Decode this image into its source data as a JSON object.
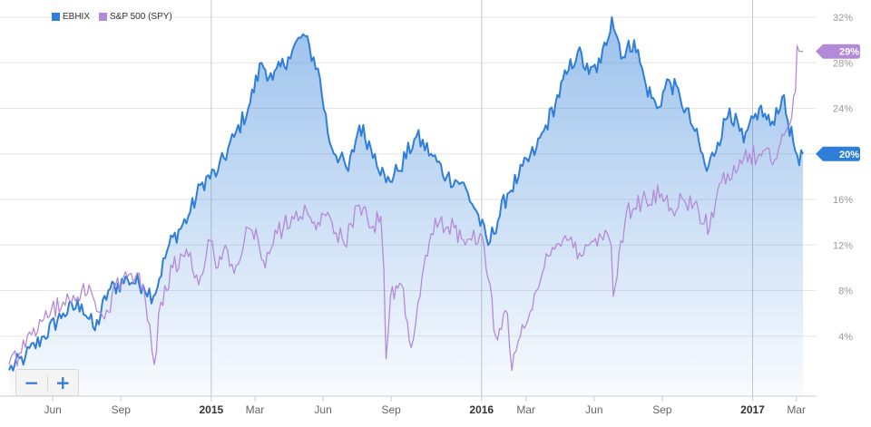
{
  "colors": {
    "ebhix": "#2f7ed8",
    "spy": "#b48ad8",
    "grid": "#e6e6e6",
    "axis_text": "#606060"
  },
  "chart_data": {
    "type": "line",
    "ylim": [
      0,
      32
    ],
    "y_ticks": [
      {
        "label": "4%",
        "value": 4
      },
      {
        "label": "8%",
        "value": 8
      },
      {
        "label": "12%",
        "value": 12
      },
      {
        "label": "16%",
        "value": 16
      },
      {
        "label": "20%",
        "value": 20
      },
      {
        "label": "24%",
        "value": 24
      },
      {
        "label": "28%",
        "value": 28
      },
      {
        "label": "32%",
        "value": 32
      }
    ],
    "x_range": [
      "2014-04-03",
      "2017-03-10"
    ],
    "x_ticks": [
      {
        "label": "Jun",
        "date": "2014-06-01",
        "bold": false
      },
      {
        "label": "Sep",
        "date": "2014-09-01",
        "bold": false
      },
      {
        "label": "2015",
        "date": "2015-01-01",
        "bold": true
      },
      {
        "label": "Mar",
        "date": "2015-03-01",
        "bold": false
      },
      {
        "label": "Jun",
        "date": "2015-06-01",
        "bold": false
      },
      {
        "label": "Sep",
        "date": "2015-09-01",
        "bold": false
      },
      {
        "label": "2016",
        "date": "2016-01-01",
        "bold": true
      },
      {
        "label": "Mar",
        "date": "2016-03-01",
        "bold": false
      },
      {
        "label": "Jun",
        "date": "2016-06-01",
        "bold": false
      },
      {
        "label": "Sep",
        "date": "2016-09-01",
        "bold": false
      },
      {
        "label": "2017",
        "date": "2017-01-01",
        "bold": true
      },
      {
        "label": "Mar",
        "date": "2017-03-01",
        "bold": false
      }
    ],
    "series": [
      {
        "name": "EBHIX",
        "color": "#2f7ed8",
        "filled": true,
        "end_label": "20%",
        "points": [
          [
            "2014-04-03",
            1.0
          ],
          [
            "2014-04-25",
            2.2
          ],
          [
            "2014-05-20",
            4.0
          ],
          [
            "2014-06-15",
            6.0
          ],
          [
            "2014-07-10",
            6.8
          ],
          [
            "2014-07-28",
            4.5
          ],
          [
            "2014-08-15",
            8.0
          ],
          [
            "2014-09-10",
            9.0
          ],
          [
            "2014-10-01",
            8.5
          ],
          [
            "2014-10-15",
            7.5
          ],
          [
            "2014-11-05",
            12.0
          ],
          [
            "2014-12-01",
            14.5
          ],
          [
            "2014-12-20",
            17.5
          ],
          [
            "2015-01-10",
            18.5
          ],
          [
            "2015-02-01",
            21.5
          ],
          [
            "2015-02-20",
            24.0
          ],
          [
            "2015-03-10",
            28.0
          ],
          [
            "2015-03-25",
            26.5
          ],
          [
            "2015-04-15",
            28.5
          ],
          [
            "2015-05-05",
            30.5
          ],
          [
            "2015-05-25",
            27.5
          ],
          [
            "2015-06-10",
            21.0
          ],
          [
            "2015-07-05",
            18.5
          ],
          [
            "2015-07-20",
            22.5
          ],
          [
            "2015-08-10",
            20.0
          ],
          [
            "2015-08-25",
            17.5
          ],
          [
            "2015-09-10",
            18.5
          ],
          [
            "2015-10-05",
            21.5
          ],
          [
            "2015-10-25",
            20.0
          ],
          [
            "2015-11-15",
            18.0
          ],
          [
            "2015-12-05",
            17.5
          ],
          [
            "2015-12-25",
            15.0
          ],
          [
            "2016-01-10",
            12.0
          ],
          [
            "2016-02-05",
            16.5
          ],
          [
            "2016-02-20",
            18.0
          ],
          [
            "2016-03-15",
            20.5
          ],
          [
            "2016-03-25",
            22.0
          ],
          [
            "2016-04-10",
            24.5
          ],
          [
            "2016-04-25",
            27.0
          ],
          [
            "2016-05-10",
            29.0
          ],
          [
            "2016-05-25",
            27.0
          ],
          [
            "2016-06-10",
            28.0
          ],
          [
            "2016-06-25",
            32.0
          ],
          [
            "2016-07-10",
            28.5
          ],
          [
            "2016-07-25",
            30.0
          ],
          [
            "2016-08-10",
            26.0
          ],
          [
            "2016-08-25",
            24.0
          ],
          [
            "2016-09-10",
            26.5
          ],
          [
            "2016-09-25",
            25.0
          ],
          [
            "2016-10-15",
            22.0
          ],
          [
            "2016-10-31",
            18.5
          ],
          [
            "2016-11-15",
            21.0
          ],
          [
            "2016-12-01",
            24.0
          ],
          [
            "2016-12-20",
            21.0
          ],
          [
            "2017-01-10",
            24.0
          ],
          [
            "2017-01-25",
            22.5
          ],
          [
            "2017-02-10",
            25.0
          ],
          [
            "2017-02-25",
            21.0
          ],
          [
            "2017-03-05",
            19.0
          ],
          [
            "2017-03-10",
            20.0
          ]
        ]
      },
      {
        "name": "S&P 500 (SPY)",
        "color": "#b48ad8",
        "filled": false,
        "end_label": "29%",
        "points": [
          [
            "2014-04-03",
            1.5
          ],
          [
            "2014-04-25",
            3.0
          ],
          [
            "2014-05-20",
            5.5
          ],
          [
            "2014-06-15",
            7.0
          ],
          [
            "2014-07-10",
            8.0
          ],
          [
            "2014-07-25",
            7.5
          ],
          [
            "2014-08-10",
            5.5
          ],
          [
            "2014-08-25",
            8.5
          ],
          [
            "2014-09-15",
            9.5
          ],
          [
            "2014-10-01",
            8.5
          ],
          [
            "2014-10-10",
            5.0
          ],
          [
            "2014-10-16",
            1.5
          ],
          [
            "2014-10-25",
            7.0
          ],
          [
            "2014-11-10",
            10.0
          ],
          [
            "2014-12-01",
            11.0
          ],
          [
            "2014-12-15",
            8.5
          ],
          [
            "2014-12-28",
            12.5
          ],
          [
            "2015-01-10",
            10.0
          ],
          [
            "2015-01-20",
            12.0
          ],
          [
            "2015-02-01",
            9.5
          ],
          [
            "2015-02-20",
            13.5
          ],
          [
            "2015-03-05",
            12.5
          ],
          [
            "2015-03-15",
            10.0
          ],
          [
            "2015-03-31",
            13.0
          ],
          [
            "2015-04-20",
            14.5
          ],
          [
            "2015-05-10",
            15.0
          ],
          [
            "2015-05-25",
            14.0
          ],
          [
            "2015-06-10",
            14.5
          ],
          [
            "2015-06-30",
            12.0
          ],
          [
            "2015-07-20",
            15.5
          ],
          [
            "2015-08-05",
            13.5
          ],
          [
            "2015-08-18",
            14.5
          ],
          [
            "2015-08-22",
            10.0
          ],
          [
            "2015-08-25",
            2.0
          ],
          [
            "2015-08-31",
            7.5
          ],
          [
            "2015-09-15",
            8.5
          ],
          [
            "2015-09-28",
            3.0
          ],
          [
            "2015-10-10",
            7.5
          ],
          [
            "2015-10-25",
            13.0
          ],
          [
            "2015-11-05",
            14.0
          ],
          [
            "2015-11-25",
            13.5
          ],
          [
            "2015-12-10",
            12.0
          ],
          [
            "2015-12-30",
            13.0
          ],
          [
            "2016-01-10",
            9.0
          ],
          [
            "2016-01-20",
            4.0
          ],
          [
            "2016-02-05",
            6.0
          ],
          [
            "2016-02-11",
            1.0
          ],
          [
            "2016-02-25",
            5.0
          ],
          [
            "2016-03-15",
            8.0
          ],
          [
            "2016-03-31",
            11.0
          ],
          [
            "2016-04-20",
            12.5
          ],
          [
            "2016-05-15",
            11.0
          ],
          [
            "2016-06-08",
            13.0
          ],
          [
            "2016-06-24",
            12.0
          ],
          [
            "2016-06-27",
            7.5
          ],
          [
            "2016-07-15",
            15.0
          ],
          [
            "2016-08-10",
            16.0
          ],
          [
            "2016-08-31",
            16.5
          ],
          [
            "2016-09-15",
            15.0
          ],
          [
            "2016-09-30",
            16.0
          ],
          [
            "2016-10-20",
            15.0
          ],
          [
            "2016-11-04",
            13.5
          ],
          [
            "2016-11-20",
            17.5
          ],
          [
            "2016-12-15",
            19.5
          ],
          [
            "2017-01-10",
            20.0
          ],
          [
            "2017-01-31",
            19.5
          ],
          [
            "2017-02-15",
            22.0
          ],
          [
            "2017-02-28",
            25.5
          ],
          [
            "2017-03-02",
            29.5
          ],
          [
            "2017-03-10",
            29.0
          ]
        ]
      }
    ]
  }
}
